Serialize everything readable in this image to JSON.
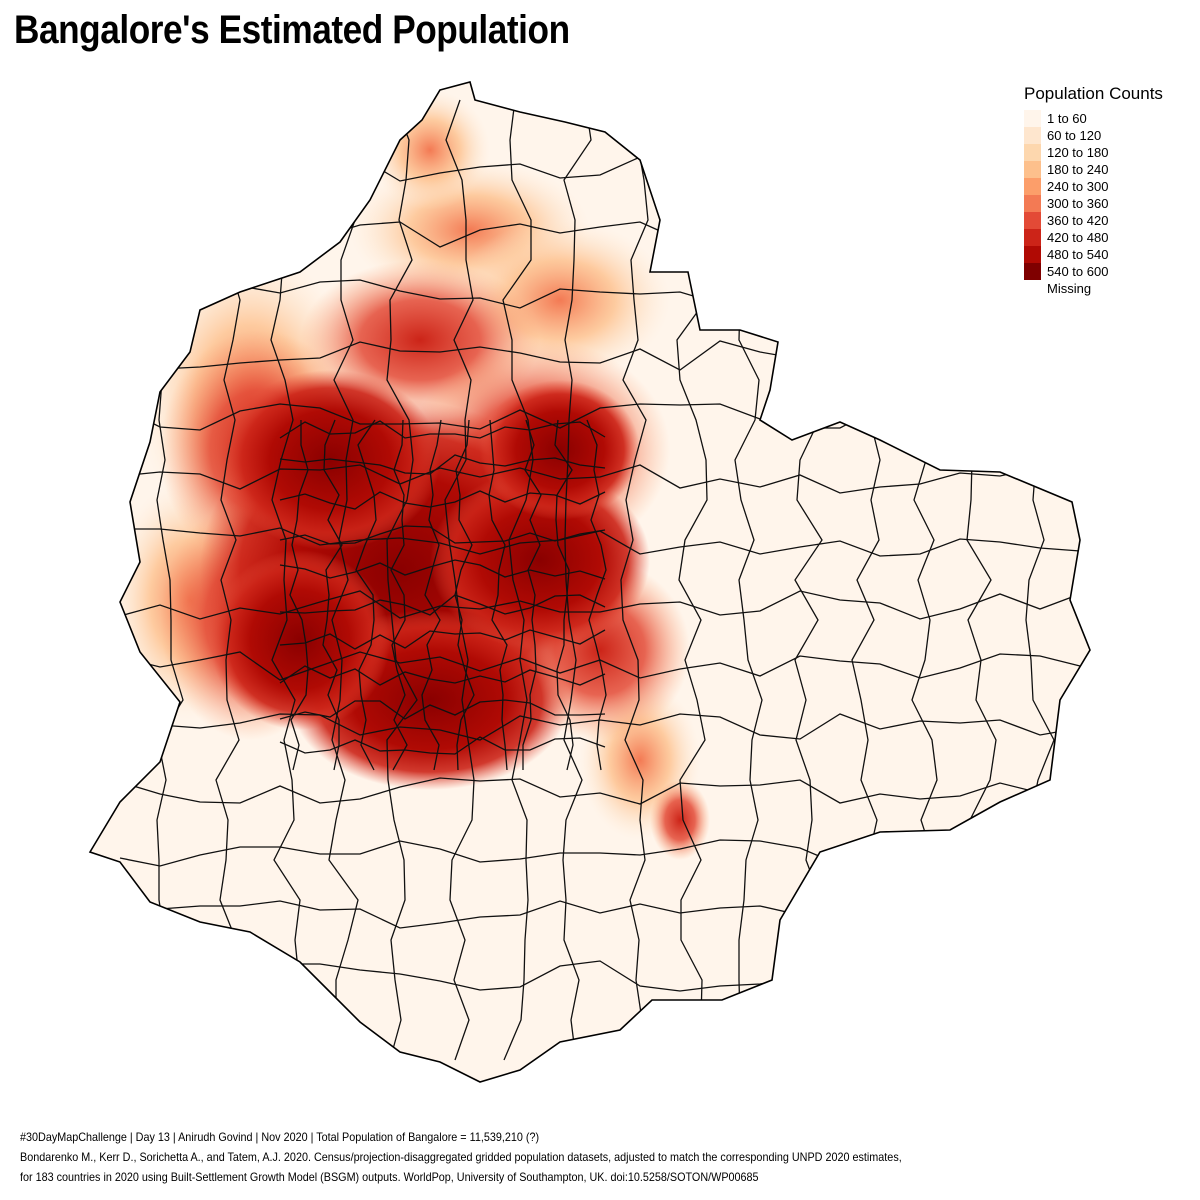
{
  "title": "Bangalore's Estimated Population",
  "legend": {
    "title": "Population Counts",
    "items": [
      {
        "label": "1 to 60",
        "color": "#fff5eb"
      },
      {
        "label": "60 to 120",
        "color": "#fee6ce"
      },
      {
        "label": "120 to 180",
        "color": "#fdd7ae"
      },
      {
        "label": "180 to 240",
        "color": "#fdc08c"
      },
      {
        "label": "240 to 300",
        "color": "#fc9e6a"
      },
      {
        "label": "300 to 360",
        "color": "#f37a54"
      },
      {
        "label": "360 to 420",
        "color": "#e34a36"
      },
      {
        "label": "420 to 480",
        "color": "#cc2418"
      },
      {
        "label": "480 to 540",
        "color": "#b00a04"
      },
      {
        "label": "540 to 600",
        "color": "#7f0000"
      },
      {
        "label": "Missing",
        "color": "#ffffff"
      }
    ]
  },
  "caption": {
    "line1": "#30DayMapChallenge | Day 13 | Anirudh Govind | Nov 2020 | Total Population of Bangalore = 11,539,210 (?)",
    "line2": "Bondarenko M., Kerr D., Sorichetta A., and Tatem, A.J. 2020. Census/projection-disaggregated gridded population datasets, adjusted to match the corresponding UNPD 2020 estimates,",
    "line3": "for 183 countries in 2020 using Built-Settlement Growth Model (BSGM) outputs. WorldPop, University of Southampton, UK. doi:10.5258/SOTON/WP00685"
  }
}
